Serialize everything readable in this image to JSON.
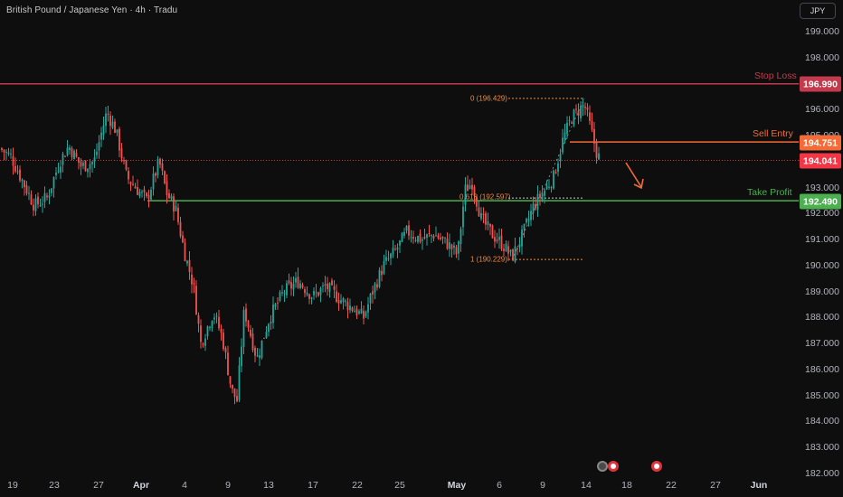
{
  "header": {
    "symbol_title": "British Pound / Japanese Yen · 4h · Tradu",
    "currency": "JPY"
  },
  "y_axis": {
    "ticks": [
      "199.000",
      "198.000",
      "197.000",
      "196.000",
      "195.000",
      "194.000",
      "193.000",
      "192.000",
      "191.000",
      "190.000",
      "189.000",
      "188.000",
      "187.000",
      "186.000",
      "185.000",
      "184.000",
      "183.000",
      "182.000"
    ]
  },
  "x_axis": {
    "ticks": [
      {
        "label": "19",
        "bold": false
      },
      {
        "label": "23",
        "bold": false
      },
      {
        "label": "27",
        "bold": false
      },
      {
        "label": "Apr",
        "bold": true
      },
      {
        "label": "4",
        "bold": false
      },
      {
        "label": "9",
        "bold": false
      },
      {
        "label": "13",
        "bold": false
      },
      {
        "label": "17",
        "bold": false
      },
      {
        "label": "22",
        "bold": false
      },
      {
        "label": "25",
        "bold": false
      },
      {
        "label": "May",
        "bold": true
      },
      {
        "label": "6",
        "bold": false
      },
      {
        "label": "9",
        "bold": false
      },
      {
        "label": "14",
        "bold": false
      },
      {
        "label": "18",
        "bold": false
      },
      {
        "label": "22",
        "bold": false
      },
      {
        "label": "27",
        "bold": false
      },
      {
        "label": "Jun",
        "bold": true
      }
    ]
  },
  "levels": {
    "stop_loss": {
      "name": "Stop Loss",
      "value": "196.990",
      "color": "#c23a4b"
    },
    "sell_entry": {
      "name": "Sell Entry",
      "value": "194.751",
      "color": "#f26b38"
    },
    "current": {
      "value": "194.041",
      "color": "#f23645"
    },
    "take_profit": {
      "name": "Take Profit",
      "value": "192.490",
      "color": "#4caf50"
    }
  },
  "fib": {
    "level_0": "0 (196.429)",
    "level_618": "0.618 (192.597)",
    "level_1": "1 (190.229)"
  },
  "colors": {
    "up": "#26a69a",
    "down": "#ef5350",
    "background": "#0e0e0e",
    "arrow": "#f26b38"
  },
  "chart_data": {
    "type": "candlestick",
    "symbol": "GBPJPY",
    "timeframe": "4h",
    "ylim": [
      182.0,
      200.0
    ],
    "x_ticks": [
      "19",
      "23",
      "27",
      "Apr",
      "4",
      "9",
      "13",
      "17",
      "22",
      "25",
      "May",
      "6",
      "9",
      "14",
      "18",
      "22",
      "27",
      "Jun"
    ],
    "approx_closes": [
      {
        "x": "19",
        "y": 194.2
      },
      {
        "x": "23",
        "y": 192.8
      },
      {
        "x": "27",
        "y": 195.9
      },
      {
        "x": "Apr",
        "y": 192.6
      },
      {
        "x": "4",
        "y": 190.5
      },
      {
        "x": "9",
        "y": 185.0
      },
      {
        "x": "13",
        "y": 188.5
      },
      {
        "x": "17",
        "y": 189.0
      },
      {
        "x": "22",
        "y": 188.5
      },
      {
        "x": "25",
        "y": 191.0
      },
      {
        "x": "May",
        "y": 191.8
      },
      {
        "x": "6",
        "y": 190.6
      },
      {
        "x": "9",
        "y": 192.7
      },
      {
        "x": "14",
        "y": 194.0
      }
    ],
    "horizontal_lines": [
      {
        "label": "Stop Loss",
        "y": 196.99
      },
      {
        "label": "Sell Entry",
        "y": 194.751
      },
      {
        "label": "Take Profit",
        "y": 192.49
      }
    ],
    "last_price": 194.041,
    "fibonacci": [
      {
        "ratio": 0,
        "price": 196.429
      },
      {
        "ratio": 0.618,
        "price": 192.597
      },
      {
        "ratio": 1,
        "price": 190.229
      }
    ]
  }
}
